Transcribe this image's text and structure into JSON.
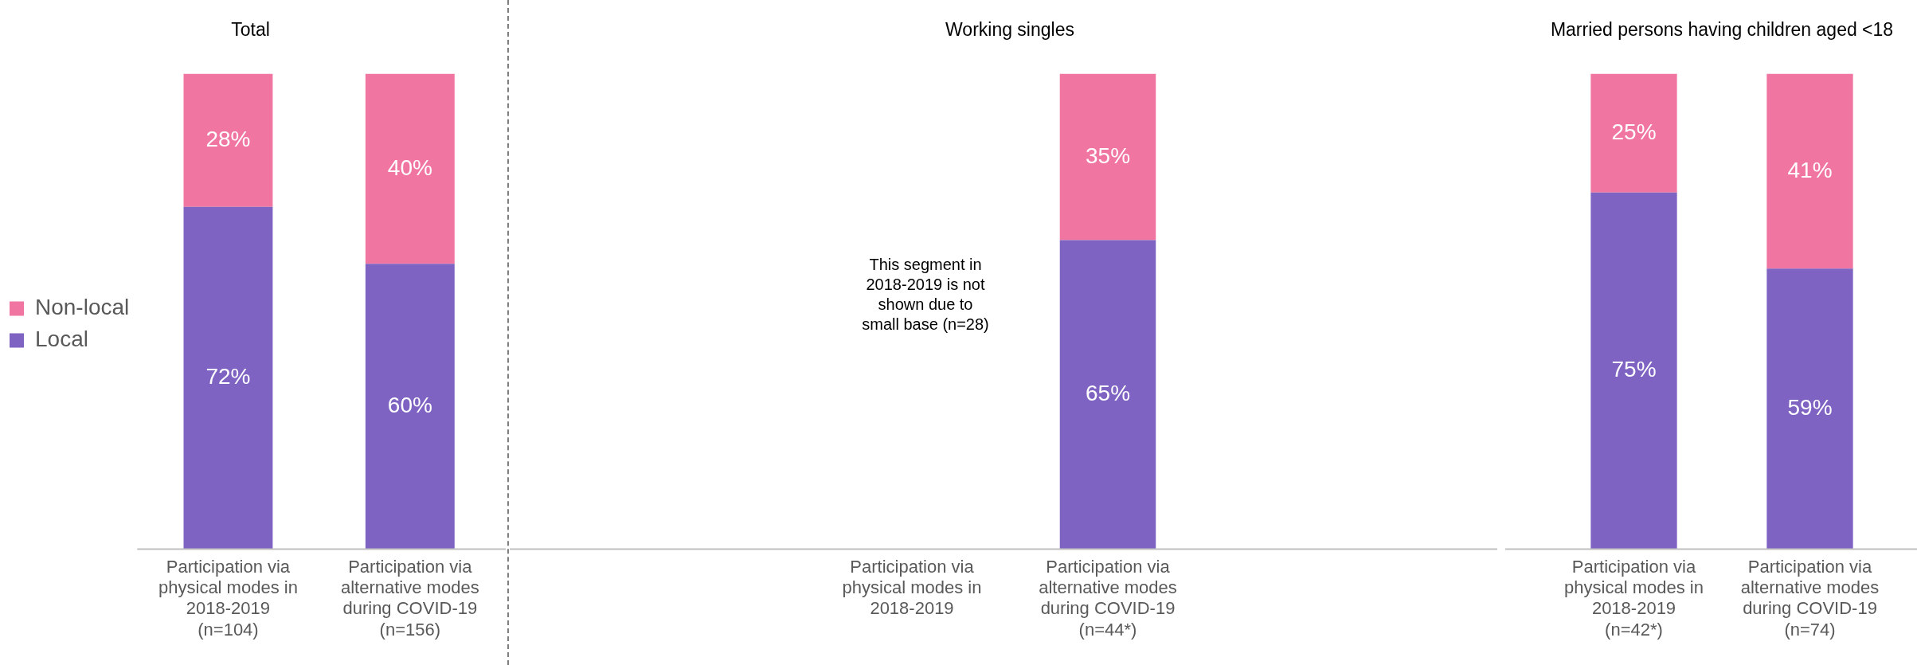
{
  "chart_data": [
    {
      "type": "bar",
      "title": "Total",
      "stacked": true,
      "legend": "left",
      "ylim": [
        0,
        100
      ],
      "categories": [
        "Participation via\nphysical modes in\n2018-2019\n(n=104)",
        "Participation via\nalternative modes\nduring COVID-19\n(n=156)"
      ],
      "series": [
        {
          "name": "Local",
          "color": "#7e63c2",
          "values": [
            72,
            60
          ],
          "value_labels": [
            "72%",
            "60%"
          ]
        },
        {
          "name": "Non-local",
          "color": "#f075a0",
          "values": [
            28,
            40
          ],
          "value_labels": [
            "28%",
            "40%"
          ]
        }
      ]
    },
    {
      "type": "bar",
      "title": "Working singles",
      "stacked": true,
      "ylim": [
        0,
        100
      ],
      "categories": [
        "Participation via\nphysical modes in\n2018-2019",
        "Participation via\nalternative modes\nduring COVID-19\n(n=44*)"
      ],
      "series": [
        {
          "color": "#7e63c2",
          "values": [
            null,
            65
          ],
          "value_labels": [
            null,
            "65%"
          ]
        },
        {
          "color": "#f075a0",
          "values": [
            null,
            35
          ],
          "value_labels": [
            null,
            "35%"
          ]
        }
      ],
      "annotations": [
        "This segment in\n2018-2019 is not\nshown due to\nsmall base (n=28)"
      ]
    },
    {
      "type": "bar",
      "title": "Married persons having children aged <18",
      "stacked": true,
      "ylim": [
        0,
        100
      ],
      "categories": [
        "Participation via\nphysical modes in\n2018-2019\n(n=42*)",
        "Participation via\nalternative modes\nduring COVID-19\n(n=74)"
      ],
      "series": [
        {
          "color": "#7e63c2",
          "values": [
            75,
            59
          ],
          "value_labels": [
            "75%",
            "59%"
          ]
        },
        {
          "color": "#f075a0",
          "values": [
            25,
            41
          ],
          "value_labels": [
            "25%",
            "41%"
          ]
        }
      ]
    }
  ]
}
